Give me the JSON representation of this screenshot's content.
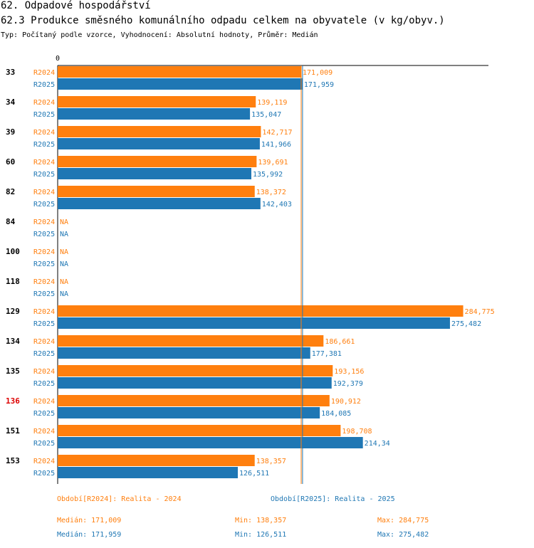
{
  "header": {
    "title": "62. Odpadové hospodářství",
    "chart_title": "62.3 Produkce směsného komunálního odpadu celkem na obyvatele (v kg/obyv.)",
    "subtitle": "Typ: Počítaný podle vzorce, Vyhodnocení: Absolutní hodnoty, Průměr: Medián"
  },
  "colors": {
    "r2024": "#ff7f0e",
    "r2025": "#1f77b4",
    "highlight": "#dd0000"
  },
  "chart_data": {
    "type": "bar",
    "orientation": "horizontal",
    "axis_zero_label": "0",
    "xlim": [
      0,
      300
    ],
    "highlight_category": "136",
    "categories": [
      "33",
      "34",
      "39",
      "60",
      "82",
      "84",
      "100",
      "118",
      "129",
      "134",
      "135",
      "136",
      "151",
      "153"
    ],
    "series": [
      {
        "name": "R2024",
        "values": [
          171.009,
          139.119,
          142.717,
          139.691,
          138.372,
          null,
          null,
          null,
          284.775,
          186.661,
          193.156,
          190.912,
          198.708,
          138.357
        ],
        "labels": [
          "171,009",
          "139,119",
          "142,717",
          "139,691",
          "138,372",
          "NA",
          "NA",
          "NA",
          "284,775",
          "186,661",
          "193,156",
          "190,912",
          "198,708",
          "138,357"
        ],
        "median": 171.009
      },
      {
        "name": "R2025",
        "values": [
          171.959,
          135.047,
          141.966,
          135.992,
          142.403,
          null,
          null,
          null,
          275.482,
          177.381,
          192.379,
          184.085,
          214.34,
          126.511
        ],
        "labels": [
          "171,959",
          "135,047",
          "141,966",
          "135,992",
          "142,403",
          "NA",
          "NA",
          "NA",
          "275,482",
          "177,381",
          "192,379",
          "184,085",
          "214,34",
          "126,511"
        ],
        "median": 171.959
      }
    ]
  },
  "legend": {
    "period_2024": "Období[R2024]: Realita - 2024",
    "period_2025": "Období[R2025]: Realita - 2025",
    "median_2024": "Medián: 171,009",
    "min_2024": "Min: 138,357",
    "max_2024": "Max: 284,775",
    "median_2025": "Medián: 171,959",
    "min_2025": "Min: 126,511",
    "max_2025": "Max: 275,482"
  }
}
